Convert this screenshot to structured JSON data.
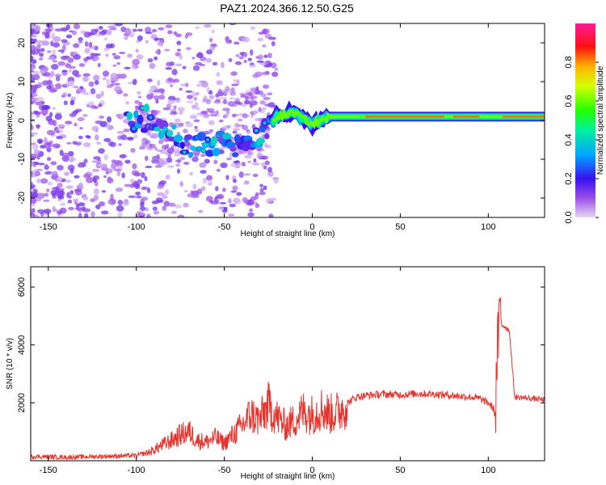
{
  "page": {
    "title": "PAZ1.2024.366.12.50.G25"
  },
  "chart_data": [
    {
      "type": "heatmap",
      "title": "PAZ1.2024.366.12.50.G25",
      "xlabel": "Height of straight line (km)",
      "ylabel": "Frequency (Hz)",
      "xlim": [
        -160,
        132
      ],
      "ylim": [
        -25,
        25
      ],
      "xticks": [
        -150,
        -100,
        -50,
        0,
        50,
        100
      ],
      "yticks": [
        -20,
        -10,
        0,
        10,
        20
      ],
      "colorbar": {
        "label": "Normalized spectral amplitude",
        "range": [
          0,
          1
        ],
        "ticks": [
          "0.0",
          "0.2",
          "0.4",
          "0.6",
          "0.8"
        ]
      },
      "ridge": {
        "description_points": [
          {
            "x": -100,
            "y": 0
          },
          {
            "x": -90,
            "y": 1
          },
          {
            "x": -80,
            "y": -3
          },
          {
            "x": -70,
            "y": -6
          },
          {
            "x": -60,
            "y": -7
          },
          {
            "x": -50,
            "y": -4
          },
          {
            "x": -40,
            "y": -7
          },
          {
            "x": -30,
            "y": -5
          },
          {
            "x": -20,
            "y": 1
          },
          {
            "x": -10,
            "y": 2
          },
          {
            "x": 0,
            "y": -1
          },
          {
            "x": 10,
            "y": 1
          },
          {
            "x": 50,
            "y": 1
          },
          {
            "x": 100,
            "y": 1
          },
          {
            "x": 132,
            "y": 1
          }
        ]
      }
    },
    {
      "type": "line",
      "xlabel": "Height of straight line (km)",
      "ylabel": "SNR (10 * v/v)",
      "xlim": [
        -160,
        132
      ],
      "ylim": [
        0,
        6700
      ],
      "xticks": [
        -150,
        -100,
        -50,
        0,
        50,
        100
      ],
      "yticks": [
        2000,
        4000,
        6000
      ],
      "series": [
        {
          "color": "#e8332d",
          "x": [
            -160,
            -140,
            -120,
            -100,
            -92,
            -85,
            -80,
            -75,
            -70,
            -65,
            -60,
            -55,
            -50,
            -45,
            -40,
            -35,
            -30,
            -25,
            -20,
            -15,
            -10,
            -5,
            0,
            5,
            10,
            15,
            20,
            25,
            30,
            40,
            50,
            60,
            70,
            80,
            90,
            95,
            100,
            103,
            104,
            105,
            106,
            107,
            108,
            110,
            112,
            115,
            120,
            125,
            132
          ],
          "values": [
            150,
            120,
            150,
            180,
            300,
            550,
            700,
            900,
            1000,
            700,
            650,
            800,
            600,
            900,
            1200,
            1600,
            1400,
            1900,
            1500,
            1200,
            1400,
            1700,
            1600,
            1800,
            1600,
            1700,
            2000,
            2200,
            2250,
            2300,
            2280,
            2320,
            2300,
            2250,
            2200,
            2150,
            2000,
            1800,
            1500,
            3500,
            4500,
            5200,
            4700,
            4600,
            4500,
            2200,
            2180,
            2150,
            2100
          ]
        }
      ]
    }
  ]
}
